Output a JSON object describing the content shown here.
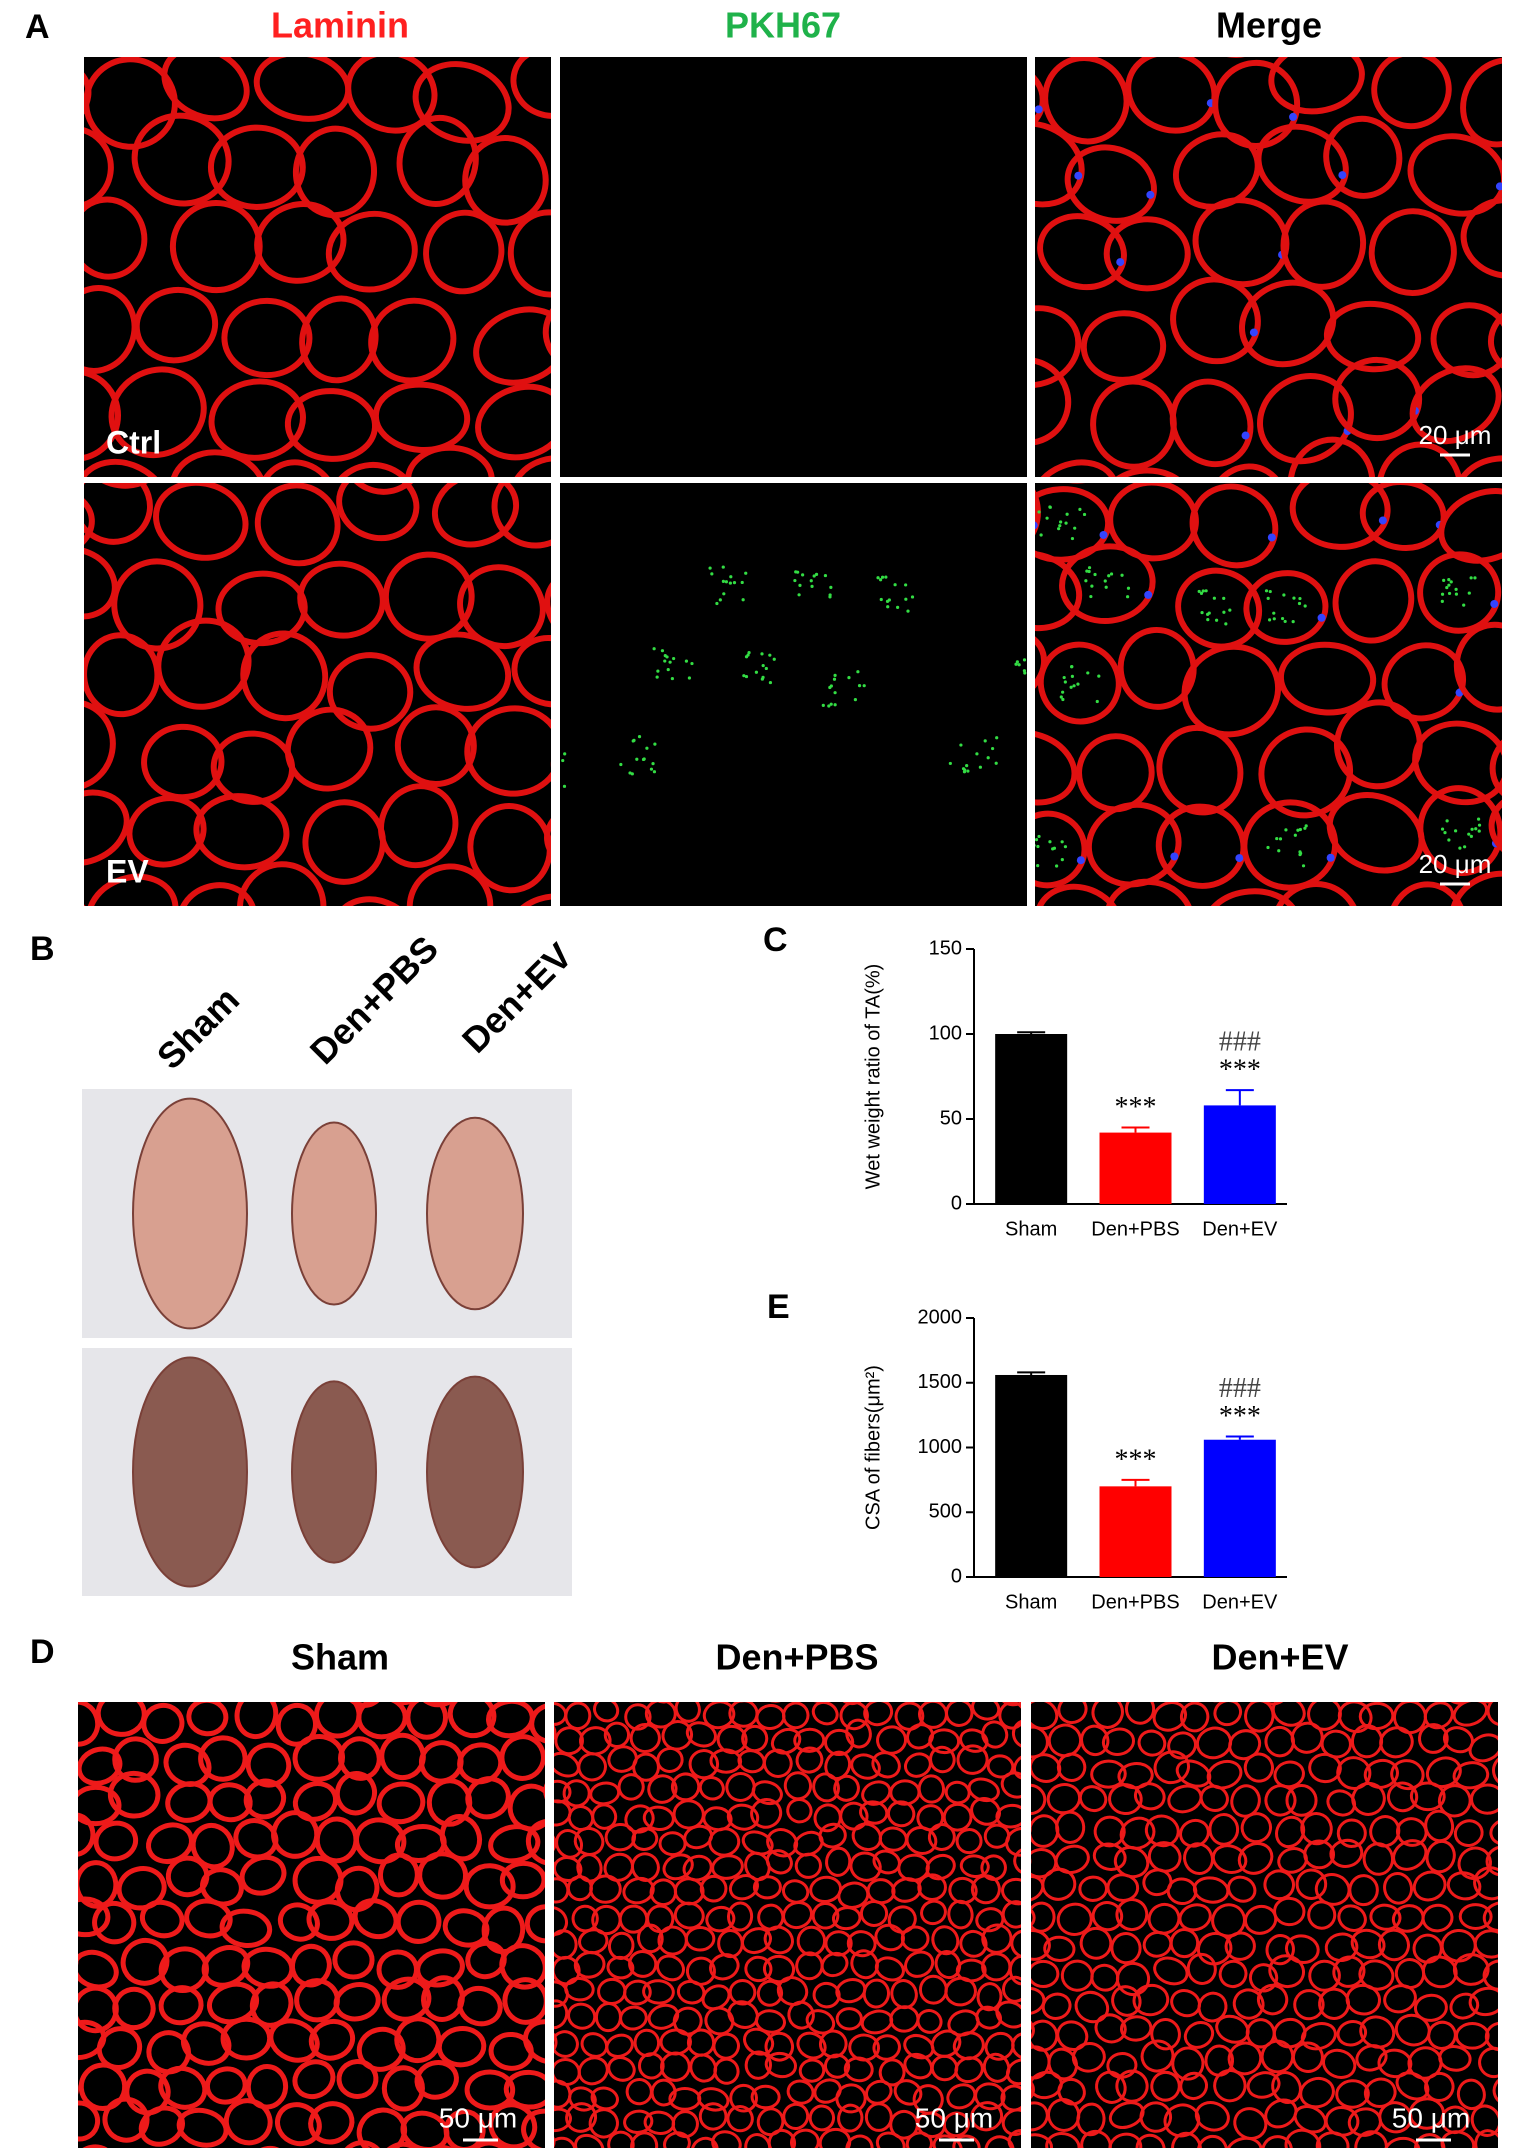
{
  "panel_a": {
    "label": "A",
    "columns": [
      "Laminin",
      "PKH67",
      "Merge"
    ],
    "rows": [
      "Ctrl",
      "EV"
    ],
    "scale_bar": "20 μm"
  },
  "panel_b": {
    "label": "B",
    "groups": [
      "Sham",
      "Den+PBS",
      "Den+EV"
    ]
  },
  "panel_c": {
    "label": "C"
  },
  "panel_e": {
    "label": "E"
  },
  "panel_d": {
    "label": "D",
    "columns": [
      "Sham",
      "Den+PBS",
      "Den+EV"
    ],
    "scale_bar": "50 μm"
  },
  "chart_data": [
    {
      "type": "bar",
      "ylabel": "Wet weight ratio of TA(%)",
      "categories": [
        "Sham",
        "Den+PBS",
        "Den+EV"
      ],
      "values": [
        100,
        42,
        58
      ],
      "errors": [
        1,
        3,
        9
      ],
      "colors": [
        "#000000",
        "#ff0000",
        "#0000ff"
      ],
      "ylim": [
        0,
        150
      ],
      "yticks": [
        0,
        50,
        100,
        150
      ],
      "stars": [
        null,
        "***",
        "***"
      ],
      "hashes": [
        null,
        null,
        "###"
      ]
    },
    {
      "type": "bar",
      "ylabel": "CSA of fibers(μm²)",
      "categories": [
        "Sham",
        "Den+PBS",
        "Den+EV"
      ],
      "values": [
        1560,
        700,
        1060
      ],
      "errors": [
        20,
        50,
        25
      ],
      "colors": [
        "#000000",
        "#ff0000",
        "#0000ff"
      ],
      "ylim": [
        0,
        2000
      ],
      "yticks": [
        0,
        500,
        1000,
        1500,
        2000
      ],
      "stars": [
        null,
        "***",
        "***"
      ],
      "hashes": [
        null,
        null,
        "###"
      ]
    }
  ]
}
